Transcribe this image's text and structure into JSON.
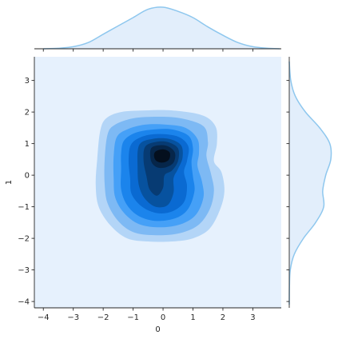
{
  "chart_data": {
    "type": "jointplot-kde",
    "title": "",
    "xlabel": "0",
    "ylabel": "1",
    "xlim": [
      -4.3,
      3.95
    ],
    "ylim": [
      -4.2,
      3.75
    ],
    "x_ticks": [
      -4,
      -3,
      -2,
      -1,
      0,
      1,
      2,
      3
    ],
    "y_ticks": [
      -4,
      -3,
      -2,
      -1,
      0,
      1,
      2,
      3
    ],
    "grid": false,
    "colors": {
      "background_fill": "#e6f1fd",
      "marginal_fill": "#e2eefb",
      "marginal_line": "#8ec7ee",
      "levels": [
        "#b3d5f7",
        "#7db9f4",
        "#45a0f7",
        "#1b84ec",
        "#0a6ad2",
        "#07529f",
        "#073b73",
        "#06264a",
        "#040f1e"
      ]
    },
    "kde_peak": [
      0,
      0.6
    ],
    "levels": [
      {
        "points": [
          [
            -2.1,
            1.4
          ],
          [
            -1.9,
            1.8
          ],
          [
            -1.4,
            2.0
          ],
          [
            -0.6,
            2.05
          ],
          [
            0.3,
            2.05
          ],
          [
            1.3,
            1.9
          ],
          [
            1.75,
            1.55
          ],
          [
            1.8,
            1.0
          ],
          [
            1.7,
            0.45
          ],
          [
            1.95,
            0.1
          ],
          [
            2.05,
            -0.5
          ],
          [
            1.9,
            -1.1
          ],
          [
            1.55,
            -1.7
          ],
          [
            1.0,
            -2.0
          ],
          [
            0.3,
            -2.1
          ],
          [
            -0.5,
            -2.1
          ],
          [
            -1.2,
            -2.0
          ],
          [
            -1.75,
            -1.6
          ],
          [
            -2.15,
            -1.0
          ],
          [
            -2.25,
            -0.3
          ],
          [
            -2.2,
            0.5
          ]
        ]
      },
      {
        "points": [
          [
            -1.85,
            1.3
          ],
          [
            -1.6,
            1.6
          ],
          [
            -1.0,
            1.8
          ],
          [
            -0.2,
            1.85
          ],
          [
            0.6,
            1.8
          ],
          [
            1.35,
            1.55
          ],
          [
            1.5,
            1.05
          ],
          [
            1.45,
            0.6
          ],
          [
            1.6,
            0.05
          ],
          [
            1.7,
            -0.5
          ],
          [
            1.55,
            -1.1
          ],
          [
            1.15,
            -1.6
          ],
          [
            0.5,
            -1.85
          ],
          [
            -0.3,
            -1.9
          ],
          [
            -1.0,
            -1.8
          ],
          [
            -1.5,
            -1.45
          ],
          [
            -1.85,
            -0.9
          ],
          [
            -1.95,
            -0.3
          ],
          [
            -1.95,
            0.5
          ]
        ]
      },
      {
        "points": [
          [
            -1.55,
            1.2
          ],
          [
            -1.2,
            1.45
          ],
          [
            -0.6,
            1.6
          ],
          [
            0.1,
            1.6
          ],
          [
            0.75,
            1.5
          ],
          [
            1.15,
            1.15
          ],
          [
            1.2,
            0.7
          ],
          [
            1.15,
            0.3
          ],
          [
            1.3,
            -0.2
          ],
          [
            1.35,
            -0.7
          ],
          [
            1.1,
            -1.25
          ],
          [
            0.6,
            -1.55
          ],
          [
            -0.1,
            -1.65
          ],
          [
            -0.8,
            -1.55
          ],
          [
            -1.3,
            -1.2
          ],
          [
            -1.6,
            -0.7
          ],
          [
            -1.65,
            -0.1
          ],
          [
            -1.65,
            0.6
          ]
        ]
      },
      {
        "points": [
          [
            -1.3,
            1.1
          ],
          [
            -0.9,
            1.35
          ],
          [
            -0.3,
            1.45
          ],
          [
            0.3,
            1.45
          ],
          [
            0.85,
            1.25
          ],
          [
            1.0,
            0.85
          ],
          [
            0.95,
            0.4
          ],
          [
            1.0,
            -0.05
          ],
          [
            1.05,
            -0.5
          ],
          [
            0.85,
            -1.05
          ],
          [
            0.45,
            -1.35
          ],
          [
            -0.2,
            -1.45
          ],
          [
            -0.8,
            -1.3
          ],
          [
            -1.2,
            -0.95
          ],
          [
            -1.4,
            -0.45
          ],
          [
            -1.4,
            0.2
          ],
          [
            -1.4,
            0.7
          ]
        ]
      },
      {
        "points": [
          [
            -1.05,
            1.0
          ],
          [
            -0.6,
            1.25
          ],
          [
            0.0,
            1.3
          ],
          [
            0.55,
            1.2
          ],
          [
            0.85,
            0.9
          ],
          [
            0.8,
            0.45
          ],
          [
            0.7,
            0.1
          ],
          [
            0.8,
            -0.35
          ],
          [
            0.7,
            -0.85
          ],
          [
            0.3,
            -1.15
          ],
          [
            -0.2,
            -1.2
          ],
          [
            -0.7,
            -1.0
          ],
          [
            -1.05,
            -0.6
          ],
          [
            -1.1,
            -0.1
          ],
          [
            -1.15,
            0.5
          ]
        ]
      },
      {
        "points": [
          [
            -0.8,
            0.95
          ],
          [
            -0.35,
            1.15
          ],
          [
            0.2,
            1.15
          ],
          [
            0.6,
            0.95
          ],
          [
            0.65,
            0.55
          ],
          [
            0.5,
            0.2
          ],
          [
            0.35,
            -0.1
          ],
          [
            0.35,
            -0.55
          ],
          [
            0.15,
            -0.95
          ],
          [
            -0.25,
            -1.0
          ],
          [
            -0.6,
            -0.75
          ],
          [
            -0.8,
            -0.35
          ],
          [
            -0.85,
            0.2
          ]
        ]
      },
      {
        "points": [
          [
            -0.6,
            0.9
          ],
          [
            -0.25,
            1.05
          ],
          [
            0.15,
            1.05
          ],
          [
            0.5,
            0.85
          ],
          [
            0.5,
            0.45
          ],
          [
            0.3,
            0.15
          ],
          [
            0.05,
            0.0
          ],
          [
            0.0,
            -0.4
          ],
          [
            -0.2,
            -0.65
          ],
          [
            -0.45,
            -0.45
          ],
          [
            -0.55,
            -0.05
          ],
          [
            -0.65,
            0.45
          ]
        ]
      },
      {
        "points": [
          [
            -0.4,
            0.85
          ],
          [
            -0.1,
            0.95
          ],
          [
            0.2,
            0.9
          ],
          [
            0.4,
            0.7
          ],
          [
            0.35,
            0.4
          ],
          [
            0.1,
            0.25
          ],
          [
            -0.2,
            0.25
          ],
          [
            -0.4,
            0.45
          ]
        ]
      },
      {
        "points": [
          [
            -0.25,
            0.75
          ],
          [
            0.0,
            0.82
          ],
          [
            0.22,
            0.72
          ],
          [
            0.2,
            0.5
          ],
          [
            0.0,
            0.4
          ],
          [
            -0.22,
            0.45
          ],
          [
            -0.3,
            0.6
          ]
        ]
      }
    ],
    "marginal_x": {
      "x": [
        -4.0,
        -3.5,
        -3.0,
        -2.5,
        -2.0,
        -1.5,
        -1.0,
        -0.5,
        0.0,
        0.5,
        1.0,
        1.5,
        2.0,
        2.5,
        3.0,
        3.5,
        3.9
      ],
      "density": [
        0.0,
        0.005,
        0.02,
        0.06,
        0.14,
        0.22,
        0.3,
        0.38,
        0.4,
        0.36,
        0.3,
        0.21,
        0.13,
        0.06,
        0.02,
        0.005,
        0.0
      ]
    },
    "marginal_y": {
      "y": [
        -4.1,
        -3.5,
        -3.0,
        -2.5,
        -2.0,
        -1.5,
        -1.0,
        -0.5,
        0.0,
        0.5,
        1.0,
        1.5,
        2.0,
        2.5,
        3.0,
        3.6
      ],
      "density": [
        0.0,
        0.002,
        0.01,
        0.05,
        0.14,
        0.26,
        0.34,
        0.33,
        0.36,
        0.41,
        0.4,
        0.3,
        0.16,
        0.06,
        0.015,
        0.0
      ]
    }
  }
}
